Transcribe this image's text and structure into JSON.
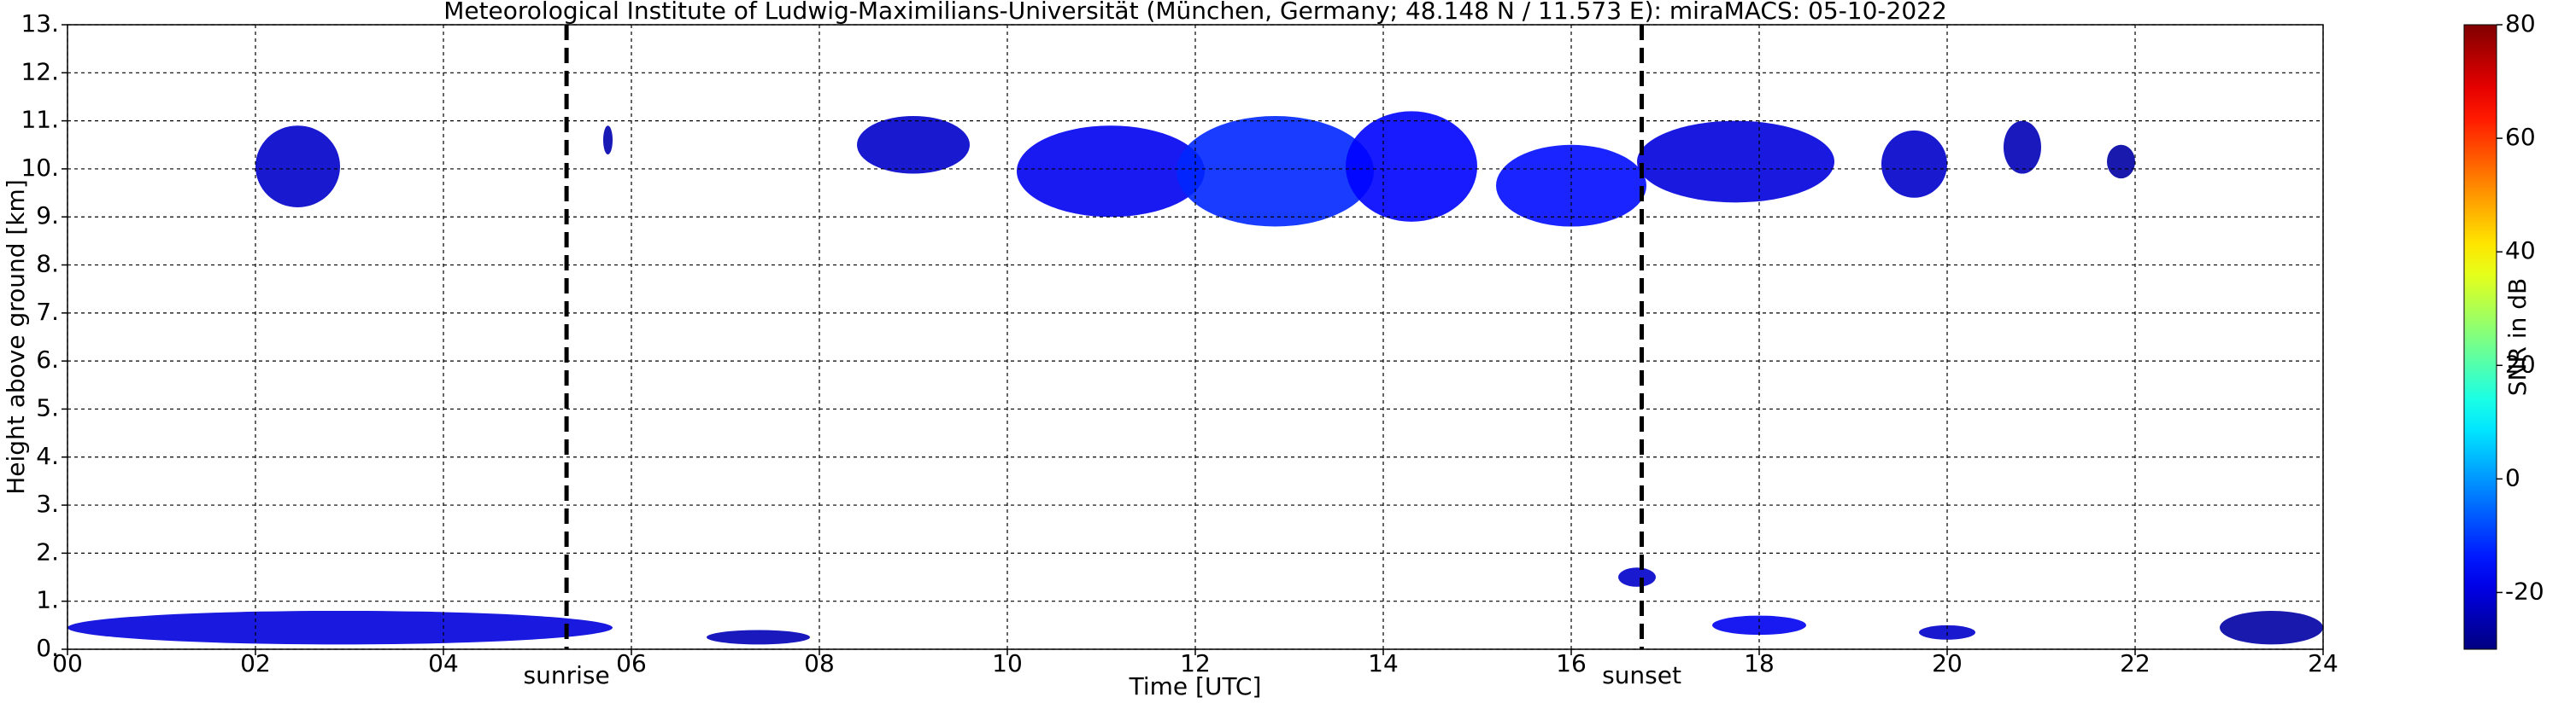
{
  "chart_data": {
    "type": "time-height",
    "title": "Meteorological Institute of Ludwig-Maximilians-Universität (München, Germany; 48.148 N / 11.573 E):    miraMACS: 05-10-2022",
    "xlabel": "Time [UTC]",
    "ylabel": "Height above ground [km]",
    "xlim": [
      0,
      24
    ],
    "xticks": [
      {
        "value": 0,
        "label": "00"
      },
      {
        "value": 2,
        "label": "02"
      },
      {
        "value": 4,
        "label": "04"
      },
      {
        "value": 6,
        "label": "06"
      },
      {
        "value": 8,
        "label": "08"
      },
      {
        "value": 10,
        "label": "10"
      },
      {
        "value": 12,
        "label": "12"
      },
      {
        "value": 14,
        "label": "14"
      },
      {
        "value": 16,
        "label": "16"
      },
      {
        "value": 18,
        "label": "18"
      },
      {
        "value": 20,
        "label": "20"
      },
      {
        "value": 22,
        "label": "22"
      },
      {
        "value": 24,
        "label": "24"
      }
    ],
    "ylim": [
      0,
      13
    ],
    "yticks": [
      {
        "value": 0,
        "label": "0."
      },
      {
        "value": 1,
        "label": "1."
      },
      {
        "value": 2,
        "label": "2."
      },
      {
        "value": 3,
        "label": "3."
      },
      {
        "value": 4,
        "label": "4."
      },
      {
        "value": 5,
        "label": "5."
      },
      {
        "value": 6,
        "label": "6."
      },
      {
        "value": 7,
        "label": "7."
      },
      {
        "value": 8,
        "label": "8."
      },
      {
        "value": 9,
        "label": "9."
      },
      {
        "value": 10,
        "label": "10."
      },
      {
        "value": 11,
        "label": "11."
      },
      {
        "value": 12,
        "label": "12."
      },
      {
        "value": 13,
        "label": "13."
      }
    ],
    "grid": true,
    "colorbar_label": "SNR in dB",
    "clim": [
      -30,
      80
    ],
    "cticks": [
      -20,
      0,
      20,
      40,
      60,
      80
    ],
    "annotations": [
      {
        "label": "sunrise",
        "x": 5.31
      },
      {
        "label": "sunset",
        "x": 16.75
      }
    ],
    "echoes": [
      {
        "t0": 2.0,
        "t1": 2.9,
        "base": 9.2,
        "top": 10.9,
        "snr": -22
      },
      {
        "t0": 5.7,
        "t1": 5.8,
        "base": 10.3,
        "top": 10.9,
        "snr": -25
      },
      {
        "t0": 8.4,
        "t1": 9.6,
        "base": 9.9,
        "top": 11.1,
        "snr": -22
      },
      {
        "t0": 10.1,
        "t1": 12.1,
        "base": 9.0,
        "top": 10.9,
        "snr": -18
      },
      {
        "t0": 11.8,
        "t1": 13.9,
        "base": 8.8,
        "top": 11.1,
        "snr": -12
      },
      {
        "t0": 13.6,
        "t1": 15.0,
        "base": 8.9,
        "top": 11.2,
        "snr": -16
      },
      {
        "t0": 15.2,
        "t1": 16.8,
        "base": 8.8,
        "top": 10.5,
        "snr": -15
      },
      {
        "t0": 16.7,
        "t1": 18.8,
        "base": 9.3,
        "top": 11.0,
        "snr": -20
      },
      {
        "t0": 19.3,
        "t1": 20.0,
        "base": 9.4,
        "top": 10.8,
        "snr": -22
      },
      {
        "t0": 20.6,
        "t1": 21.0,
        "base": 9.9,
        "top": 11.0,
        "snr": -24
      },
      {
        "t0": 21.7,
        "t1": 22.0,
        "base": 9.8,
        "top": 10.5,
        "snr": -26
      },
      {
        "t0": 0.0,
        "t1": 5.8,
        "base": 0.1,
        "top": 0.8,
        "snr": -20
      },
      {
        "t0": 6.8,
        "t1": 7.9,
        "base": 0.1,
        "top": 0.4,
        "snr": -24
      },
      {
        "t0": 16.5,
        "t1": 16.9,
        "base": 1.3,
        "top": 1.7,
        "snr": -22
      },
      {
        "t0": 17.5,
        "t1": 18.5,
        "base": 0.3,
        "top": 0.7,
        "snr": -18
      },
      {
        "t0": 19.7,
        "t1": 20.3,
        "base": 0.2,
        "top": 0.5,
        "snr": -22
      },
      {
        "t0": 22.9,
        "t1": 24.0,
        "base": 0.1,
        "top": 0.8,
        "snr": -26
      }
    ]
  }
}
